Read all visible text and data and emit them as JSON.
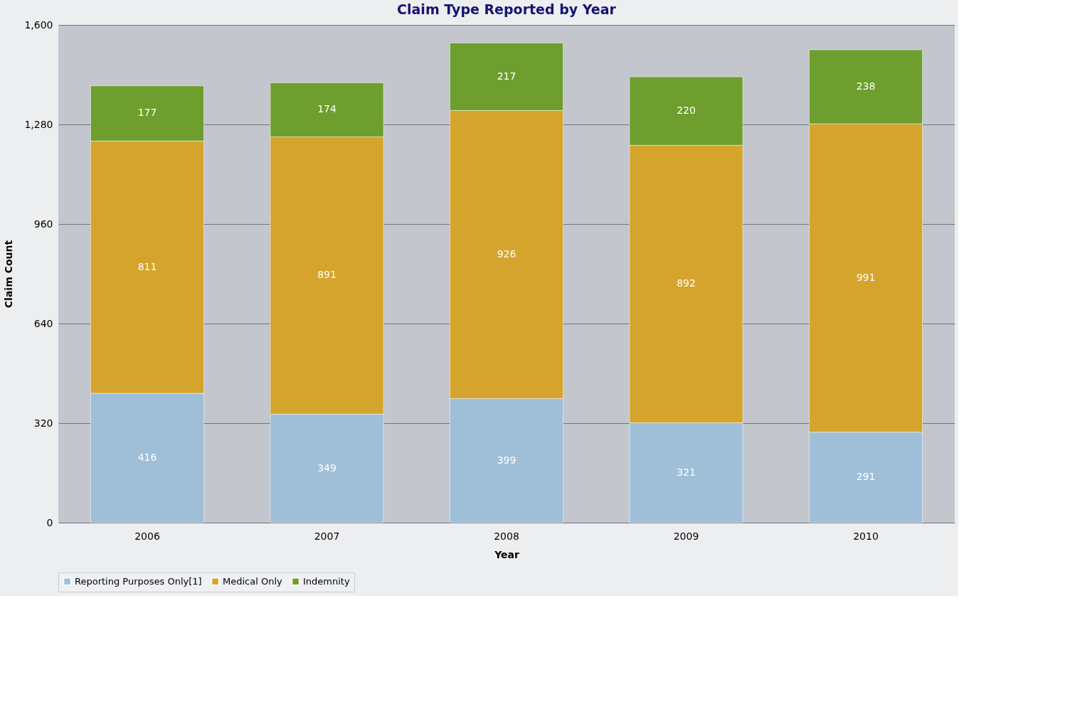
{
  "chart_data": {
    "type": "bar",
    "title": "Claim Type Reported by Year",
    "xlabel": "Year",
    "ylabel": "Claim Count",
    "categories": [
      "2006",
      "2007",
      "2008",
      "2009",
      "2010"
    ],
    "stacked": true,
    "series": [
      {
        "name": "Reporting Purposes Only[1]",
        "color": "#9fbfd8",
        "values": [
          416,
          349,
          399,
          321,
          291
        ]
      },
      {
        "name": "Medical Only",
        "color": "#d4a42c",
        "values": [
          811,
          891,
          926,
          892,
          991
        ]
      },
      {
        "name": "Indemnity",
        "color": "#6e9e2e",
        "values": [
          177,
          174,
          217,
          220,
          238
        ]
      }
    ],
    "ylim": [
      0,
      1600
    ],
    "yticks": [
      0,
      320,
      640,
      960,
      {
        "value": 1280,
        "label": "1,280"
      },
      {
        "value": 1600,
        "label": "1,600"
      }
    ],
    "grid": "y",
    "legend": "bottom",
    "data_labels": true
  }
}
